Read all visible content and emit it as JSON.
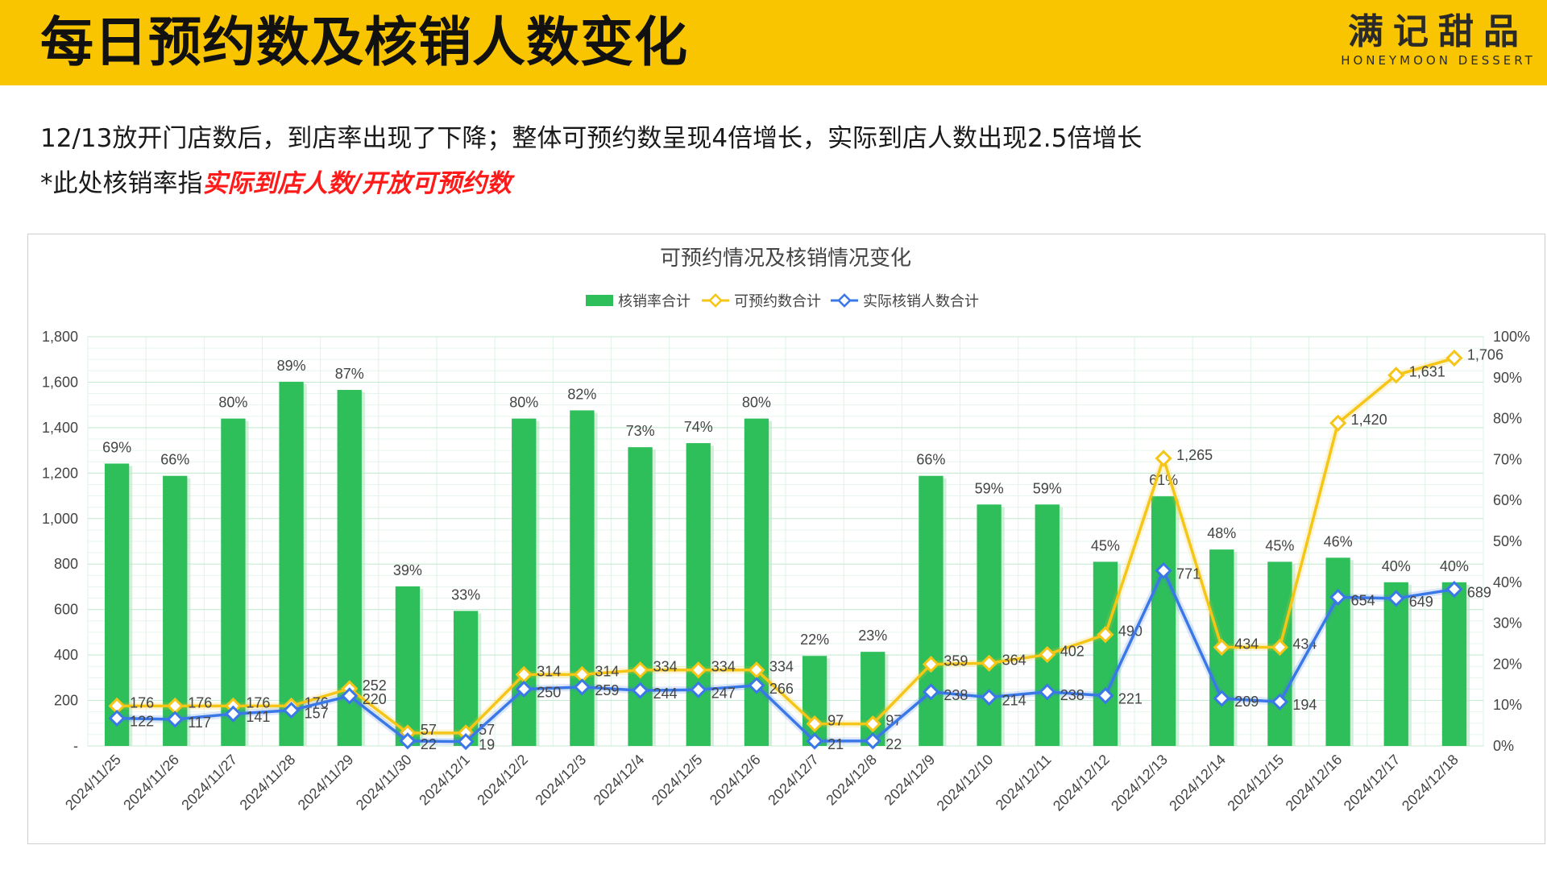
{
  "header": {
    "title": "每日预约数及核销人数变化",
    "logo_cn": "满记甜品",
    "logo_en": "HONEYMOON DESSERT"
  },
  "subtitle": "12/13放开门店数后，到店率出现了下降；整体可预约数呈现4倍增长，实际到店人数出现2.5倍增长",
  "note": {
    "prefix": "*此处核销率指",
    "highlight": "实际到店人数/开放可预约数"
  },
  "colors": {
    "header_bg": "#f9c500",
    "bar": "#2fbf5a",
    "reservable_line": "#f5c518",
    "redeemed_line": "#3b78e7",
    "highlight_text": "#ff1a1a"
  },
  "chart_data": {
    "type": "bar",
    "title": "可预约情况及核销情况变化",
    "legend_position": "top",
    "grid": true,
    "categories": [
      "2024/11/25",
      "2024/11/26",
      "2024/11/27",
      "2024/11/28",
      "2024/11/29",
      "2024/11/30",
      "2024/12/1",
      "2024/12/2",
      "2024/12/3",
      "2024/12/4",
      "2024/12/5",
      "2024/12/6",
      "2024/12/7",
      "2024/12/8",
      "2024/12/9",
      "2024/12/10",
      "2024/12/11",
      "2024/12/12",
      "2024/12/13",
      "2024/12/14",
      "2024/12/15",
      "2024/12/16",
      "2024/12/17",
      "2024/12/18"
    ],
    "y_left": {
      "min": 0,
      "max": 1800,
      "step": 200,
      "tick_labels": [
        "-",
        "200",
        "400",
        "600",
        "800",
        "1,000",
        "1,200",
        "1,400",
        "1,600",
        "1,800"
      ]
    },
    "y_right": {
      "min": 0,
      "max": 100,
      "step": 10,
      "tick_labels": [
        "0%",
        "10%",
        "20%",
        "30%",
        "40%",
        "50%",
        "60%",
        "70%",
        "80%",
        "90%",
        "100%"
      ]
    },
    "series": [
      {
        "name": "核销率合计",
        "type": "bar",
        "axis": "right",
        "unit": "%",
        "values": [
          69,
          66,
          80,
          89,
          87,
          39,
          33,
          80,
          82,
          73,
          74,
          80,
          22,
          23,
          66,
          59,
          59,
          45,
          61,
          48,
          45,
          46,
          40,
          40
        ],
        "labels": [
          "69%",
          "66%",
          "80%",
          "89%",
          "87%",
          "39%",
          "33%",
          "80%",
          "82%",
          "73%",
          "74%",
          "80%",
          "22%",
          "23%",
          "66%",
          "59%",
          "59%",
          "45%",
          "61%",
          "48%",
          "45%",
          "46%",
          "40%",
          "40%"
        ]
      },
      {
        "name": "可预约数合计",
        "type": "line",
        "axis": "left",
        "values": [
          176,
          176,
          176,
          176,
          252,
          57,
          57,
          314,
          314,
          334,
          334,
          334,
          97,
          97,
          359,
          364,
          402,
          490,
          1265,
          434,
          434,
          1420,
          1631,
          1706
        ],
        "labels": [
          "176",
          "176",
          "176",
          "176",
          "252",
          "57",
          "57",
          "314",
          "314",
          "334",
          "334",
          "334",
          "97",
          "97",
          "359",
          "364",
          "402",
          "490",
          "1,265",
          "434",
          "434",
          "1,420",
          "1,631",
          "1,706"
        ]
      },
      {
        "name": "实际核销人数合计",
        "type": "line",
        "axis": "left",
        "values": [
          122,
          117,
          141,
          157,
          220,
          22,
          19,
          250,
          259,
          244,
          247,
          266,
          21,
          22,
          238,
          214,
          238,
          221,
          771,
          209,
          194,
          654,
          649,
          689
        ],
        "labels": [
          "122",
          "117",
          "141",
          "157",
          "220",
          "22",
          "19",
          "250",
          "259",
          "244",
          "247",
          "266",
          "21",
          "22",
          "238",
          "214",
          "238",
          "221",
          "771",
          "209",
          "194",
          "654",
          "649",
          "689"
        ]
      }
    ]
  }
}
